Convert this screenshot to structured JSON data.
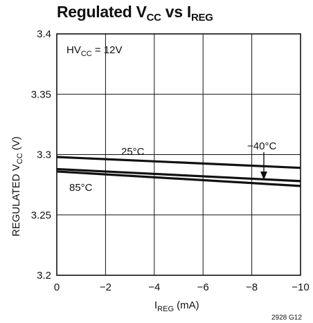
{
  "chart_data": {
    "type": "line",
    "title": {
      "main": "Regulated V",
      "sub1": "CC",
      "mid": " vs I",
      "sub2": "REG"
    },
    "xlabel": {
      "main": "I",
      "sub": "REG",
      "rest": " (mA)"
    },
    "ylabel": {
      "main": "REGULATED V",
      "sub": "CC",
      "rest": " (V)"
    },
    "xlim": [
      0,
      -10
    ],
    "ylim": [
      3.2,
      3.4
    ],
    "x_ticks": [
      0,
      -2,
      -4,
      -6,
      -8,
      -10
    ],
    "x_tick_labels": [
      "0",
      "−2",
      "−4",
      "−6",
      "−8",
      "−10"
    ],
    "y_ticks": [
      3.2,
      3.25,
      3.3,
      3.35,
      3.4
    ],
    "y_tick_labels": [
      "3.2",
      "3.25",
      "3.3",
      "3.35",
      "3.4"
    ],
    "grid": true,
    "condition": {
      "main": "HV",
      "sub": "CC",
      "rest": " = 12V"
    },
    "series": [
      {
        "name": "25°C",
        "x": [
          0,
          -10
        ],
        "y": [
          3.298,
          3.289
        ]
      },
      {
        "name": "−40°C",
        "x": [
          0,
          -10
        ],
        "y": [
          3.288,
          3.278
        ]
      },
      {
        "name": "85°C",
        "x": [
          0,
          -10
        ],
        "y": [
          3.286,
          3.274
        ]
      }
    ],
    "footnote": "2928 G12"
  }
}
